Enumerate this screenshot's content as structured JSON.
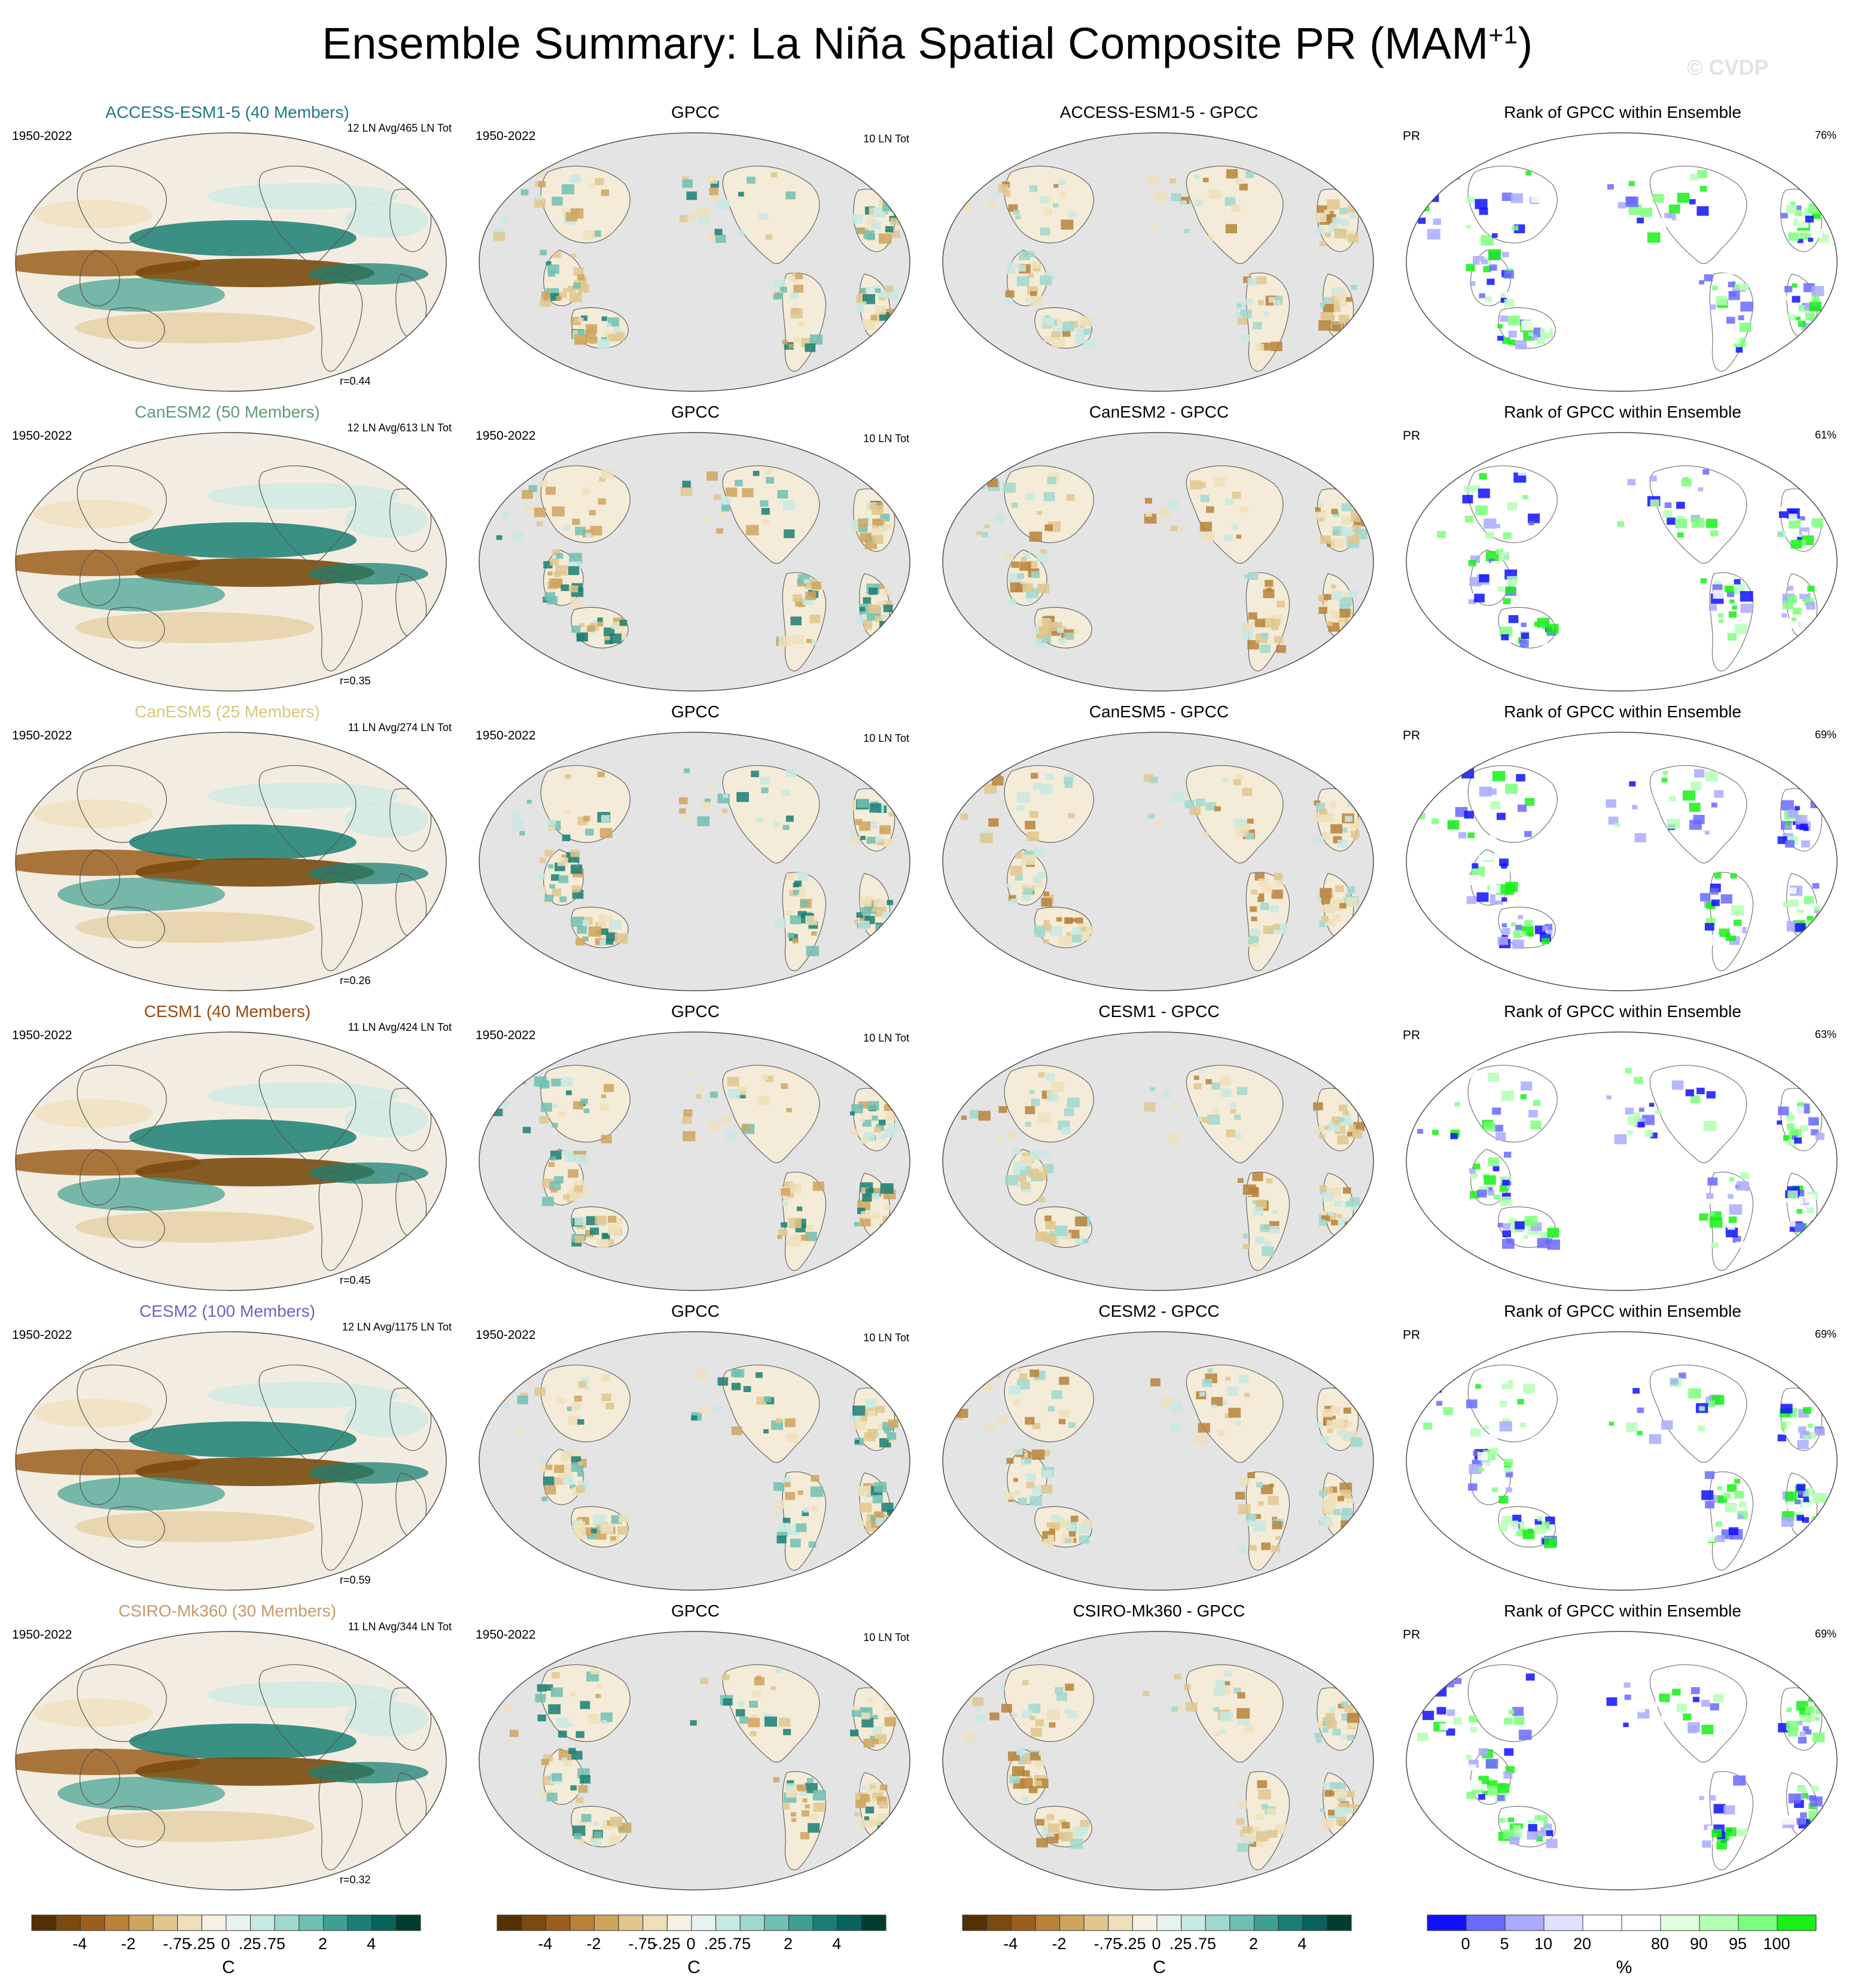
{
  "title": {
    "text": "Ensemble Summary: La Niña Spatial Composite PR (MAM",
    "sup": "+1",
    "close": ")"
  },
  "watermark": "© CVDP",
  "columns": {
    "obs_title": "GPCC",
    "rank_title": "Rank of GPCC within Ensemble",
    "rank_var": "PR"
  },
  "rows": [
    {
      "model": "ACCESS-ESM1-5 (40 Members)",
      "model_color": "#1b7a8a",
      "diff_title": "ACCESS-ESM1-5 - GPCC",
      "period": "1950-2022",
      "model_meta": "12 LN Avg/465 LN Tot",
      "corr": "r=0.44",
      "obs_meta": "10 LN Tot",
      "rank_pct": "76%"
    },
    {
      "model": "CanESM2 (50 Members)",
      "model_color": "#5f9a78",
      "diff_title": "CanESM2 - GPCC",
      "period": "1950-2022",
      "model_meta": "12 LN Avg/613 LN Tot",
      "corr": "r=0.35",
      "obs_meta": "10 LN Tot",
      "rank_pct": "61%"
    },
    {
      "model": "CanESM5 (25 Members)",
      "model_color": "#d8c77a",
      "diff_title": "CanESM5 - GPCC",
      "period": "1950-2022",
      "model_meta": "11 LN Avg/274 LN Tot",
      "corr": "r=0.26",
      "obs_meta": "10 LN Tot",
      "rank_pct": "69%"
    },
    {
      "model": "CESM1 (40 Members)",
      "model_color": "#9a4a10",
      "diff_title": "CESM1 - GPCC",
      "period": "1950-2022",
      "model_meta": "11 LN Avg/424 LN Tot",
      "corr": "r=0.45",
      "obs_meta": "10 LN Tot",
      "rank_pct": "63%"
    },
    {
      "model": "CESM2 (100 Members)",
      "model_color": "#7a5ac8",
      "diff_title": "CESM2 - GPCC",
      "period": "1950-2022",
      "model_meta": "12 LN Avg/1175 LN Tot",
      "corr": "r=0.59",
      "obs_meta": "10 LN Tot",
      "rank_pct": "69%"
    },
    {
      "model": "CSIRO-Mk360 (30 Members)",
      "model_color": "#c89a66",
      "diff_title": "CSIRO-Mk360 - GPCC",
      "period": "1950-2022",
      "model_meta": "11 LN Avg/344 LN Tot",
      "corr": "r=0.32",
      "obs_meta": "10 LN Tot",
      "rank_pct": "69%"
    }
  ],
  "colorbars": {
    "anomaly": {
      "colors": [
        "#543005",
        "#7a4a10",
        "#9b5e1c",
        "#b8823a",
        "#cfa55e",
        "#e0c78e",
        "#efe0bb",
        "#f7f1e4",
        "#e8f4f2",
        "#c7e9e4",
        "#9fd8cf",
        "#70bfb3",
        "#3f9f92",
        "#1a7f73",
        "#07635a",
        "#003c30"
      ],
      "ticks": [
        "-4",
        "-2",
        "-.75",
        "-.25",
        "0",
        ".25",
        ".75",
        "2",
        "4"
      ],
      "unit": "C"
    },
    "rank": {
      "colors": [
        "#1010ff",
        "#6a6aff",
        "#aaaaff",
        "#e0e0ff",
        "#ffffff",
        "#ffffff",
        "#e0ffe0",
        "#b4ffb4",
        "#7cff7c",
        "#18f018"
      ],
      "ticks": [
        "0",
        "5",
        "10",
        "20",
        "80",
        "90",
        "95",
        "100"
      ],
      "unit": "%"
    }
  }
}
